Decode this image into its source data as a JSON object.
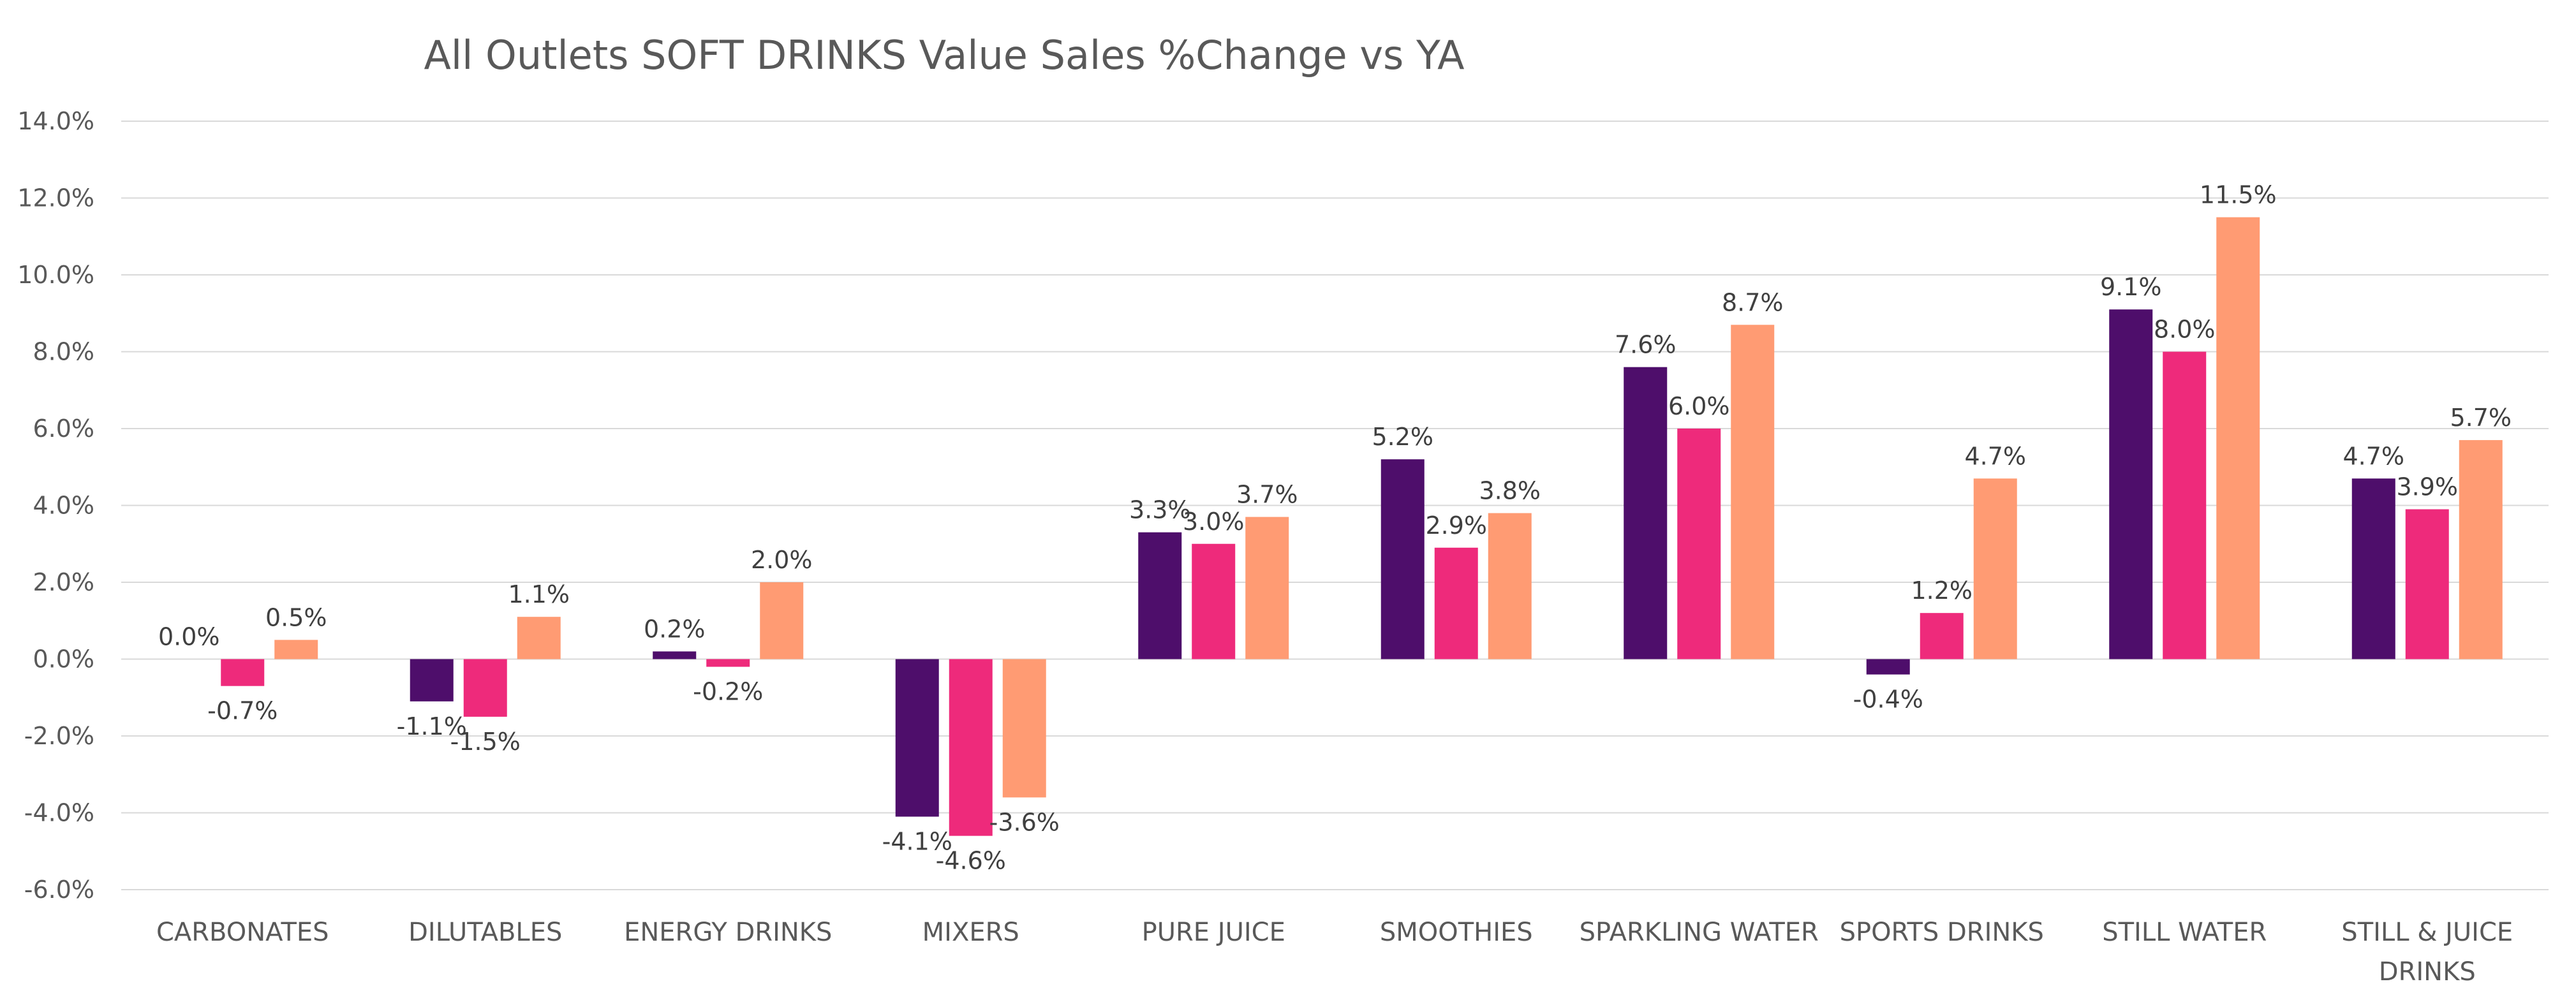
{
  "chart_data": {
    "type": "bar",
    "title": "All Outlets SOFT DRINKS Value Sales %Change vs YA",
    "xlabel": "",
    "ylabel": "",
    "ylim": [
      -6,
      14
    ],
    "y_ticks": [
      "14.0%",
      "12.0%",
      "10.0%",
      "8.0%",
      "6.0%",
      "4.0%",
      "2.0%",
      "0.0%",
      "-2.0%",
      "-4.0%",
      "-6.0%"
    ],
    "y_tick_values": [
      14,
      12,
      10,
      8,
      6,
      4,
      2,
      0,
      -2,
      -4,
      -6
    ],
    "grid": true,
    "legend": "none",
    "categories": [
      "CARBONATES",
      "DILUTABLES",
      "ENERGY DRINKS",
      "MIXERS",
      "PURE JUICE",
      "SMOOTHIES",
      "SPARKLING WATER",
      "SPORTS DRINKS",
      "STILL WATER",
      "STILL & JUICE DRINKS"
    ],
    "category_lines": [
      [
        "CARBONATES"
      ],
      [
        "DILUTABLES"
      ],
      [
        "ENERGY DRINKS"
      ],
      [
        "MIXERS"
      ],
      [
        "PURE JUICE"
      ],
      [
        "SMOOTHIES"
      ],
      [
        "SPARKLING WATER"
      ],
      [
        "SPORTS DRINKS"
      ],
      [
        "STILL WATER"
      ],
      [
        "STILL & JUICE",
        "DRINKS"
      ]
    ],
    "series": [
      {
        "color": "#4e0e6b",
        "values": [
          0.0,
          -1.1,
          0.2,
          -4.1,
          3.3,
          5.2,
          7.6,
          -0.4,
          9.1,
          4.7
        ],
        "labels": [
          "0.0%",
          "-1.1%",
          "0.2%",
          "-4.1%",
          "3.3%",
          "5.2%",
          "7.6%",
          "-0.4%",
          "9.1%",
          "4.7%"
        ]
      },
      {
        "color": "#ee2a7b",
        "values": [
          -0.7,
          -1.5,
          -0.2,
          -4.6,
          3.0,
          2.9,
          6.0,
          1.2,
          8.0,
          3.9
        ],
        "labels": [
          "-0.7%",
          "-1.5%",
          "-0.2%",
          "-4.6%",
          "3.0%",
          "2.9%",
          "6.0%",
          "1.2%",
          "8.0%",
          "3.9%"
        ]
      },
      {
        "color": "#ff9b73",
        "values": [
          0.5,
          1.1,
          2.0,
          -3.6,
          3.7,
          3.8,
          8.7,
          4.7,
          11.5,
          5.7
        ],
        "labels": [
          "0.5%",
          "1.1%",
          "2.0%",
          "-3.6%",
          "3.7%",
          "3.8%",
          "8.7%",
          "4.7%",
          "11.5%",
          "5.7%"
        ]
      }
    ]
  }
}
